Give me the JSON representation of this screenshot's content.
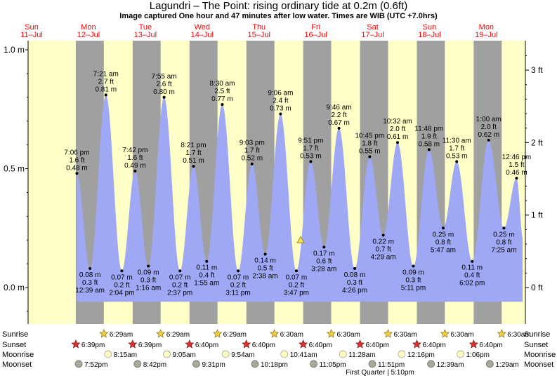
{
  "title": "Lagundri – The Point: rising  ordinary tide at 0.2m (0.6ft)",
  "subtitle": "Image captured One hour and 47 minutes after low water. Times are WIB (UTC +7.0hrs)",
  "colors": {
    "day": "#ffffc8",
    "night": "#a0a0a0",
    "tide": "#9fa8f5",
    "day_label": "#ff0000",
    "sunrise_star": "#f0d040",
    "sunset_star": "#e03030",
    "moonrise": "#fffcc0",
    "moonset": "#a8a898"
  },
  "chart_data": {
    "type": "area",
    "title": "Lagundri – The Point: rising  ordinary tide at 0.2m (0.6ft)",
    "ylim": [
      -0.1,
      1.05
    ],
    "left_ticks": [
      {
        "v": 0.0,
        "label": "0.0 m"
      },
      {
        "v": 0.5,
        "label": "0.5 m"
      },
      {
        "v": 1.0,
        "label": "1.0 m"
      }
    ],
    "right_ticks": [
      {
        "v": 0.0,
        "label": "0 ft"
      },
      {
        "v": 0.3048,
        "label": "1 ft"
      },
      {
        "v": 0.6096,
        "label": "2 ft"
      },
      {
        "v": 0.9144,
        "label": "3 ft"
      }
    ],
    "days": [
      {
        "dow": "Sun",
        "date": "11–Jul",
        "hour": -24
      },
      {
        "dow": "Mon",
        "date": "12–Jul",
        "hour": 0
      },
      {
        "dow": "Tue",
        "date": "13–Jul",
        "hour": 24
      },
      {
        "dow": "Wed",
        "date": "14–Jul",
        "hour": 48
      },
      {
        "dow": "Thu",
        "date": "15–Jul",
        "hour": 72
      },
      {
        "dow": "Fri",
        "date": "16–Jul",
        "hour": 96
      },
      {
        "dow": "Sat",
        "date": "17–Jul",
        "hour": 120
      },
      {
        "dow": "Sun",
        "date": "18–Jul",
        "hour": 144
      },
      {
        "dow": "Mon",
        "date": "19–Jul",
        "hour": 168
      }
    ],
    "tides": [
      {
        "time": "7:06 pm",
        "ft": "1.6 ft",
        "m": "0.48 m",
        "h": -4.9,
        "v": 0.48,
        "type": "high"
      },
      {
        "time": "12:39 am",
        "ft": "0.3 ft",
        "m": "0.08 m",
        "h": 0.65,
        "v": 0.08,
        "type": "low"
      },
      {
        "time": "7:21 am",
        "ft": "2.7 ft",
        "m": "0.81 m",
        "h": 7.35,
        "v": 0.81,
        "type": "high"
      },
      {
        "time": "2:04 pm",
        "ft": "0.2 ft",
        "m": "0.07 m",
        "h": 14.07,
        "v": 0.07,
        "type": "low"
      },
      {
        "time": "7:42 pm",
        "ft": "1.6 ft",
        "m": "0.49 m",
        "h": 19.7,
        "v": 0.49,
        "type": "high"
      },
      {
        "time": "1:16 am",
        "ft": "0.3 ft",
        "m": "0.09 m",
        "h": 25.27,
        "v": 0.09,
        "type": "low"
      },
      {
        "time": "7:55 am",
        "ft": "2.6 ft",
        "m": "0.80 m",
        "h": 31.92,
        "v": 0.8,
        "type": "high"
      },
      {
        "time": "2:37 pm",
        "ft": "0.2 ft",
        "m": "0.07 m",
        "h": 38.62,
        "v": 0.07,
        "type": "low"
      },
      {
        "time": "8:21 pm",
        "ft": "1.7 ft",
        "m": "0.51 m",
        "h": 44.35,
        "v": 0.51,
        "type": "high"
      },
      {
        "time": "1:55 am",
        "ft": "0.4 ft",
        "m": "0.11 m",
        "h": 49.92,
        "v": 0.11,
        "type": "low"
      },
      {
        "time": "8:30 am",
        "ft": "2.5 ft",
        "m": "0.77 m",
        "h": 56.5,
        "v": 0.77,
        "type": "high"
      },
      {
        "time": "3:11 pm",
        "ft": "0.2 ft",
        "m": "0.07 m",
        "h": 63.18,
        "v": 0.07,
        "type": "low"
      },
      {
        "time": "9:03 pm",
        "ft": "1.7 ft",
        "m": "0.52 m",
        "h": 69.05,
        "v": 0.52,
        "type": "high"
      },
      {
        "time": "2:38 am",
        "ft": "0.5 ft",
        "m": "0.14 m",
        "h": 74.63,
        "v": 0.14,
        "type": "low"
      },
      {
        "time": "9:06 am",
        "ft": "2.4 ft",
        "m": "0.73 m",
        "h": 81.1,
        "v": 0.73,
        "type": "high"
      },
      {
        "time": "3:47 pm",
        "ft": "0.2 ft",
        "m": "0.07 m",
        "h": 87.78,
        "v": 0.07,
        "type": "low"
      },
      {
        "time": "9:51 pm",
        "ft": "1.7 ft",
        "m": "0.53 m",
        "h": 93.85,
        "v": 0.53,
        "type": "high"
      },
      {
        "time": "3:28 am",
        "ft": "0.6 ft",
        "m": "0.17 m",
        "h": 99.47,
        "v": 0.17,
        "type": "low"
      },
      {
        "time": "9:46 am",
        "ft": "2.2 ft",
        "m": "0.67 m",
        "h": 105.77,
        "v": 0.67,
        "type": "high"
      },
      {
        "time": "4:26 pm",
        "ft": "0.3 ft",
        "m": "0.08 m",
        "h": 112.43,
        "v": 0.08,
        "type": "low"
      },
      {
        "time": "10:45 pm",
        "ft": "1.8 ft",
        "m": "0.55 m",
        "h": 118.75,
        "v": 0.55,
        "type": "high"
      },
      {
        "time": "4:29 am",
        "ft": "0.7 ft",
        "m": "0.22 m",
        "h": 124.48,
        "v": 0.22,
        "type": "low"
      },
      {
        "time": "10:32 am",
        "ft": "2.0 ft",
        "m": "0.61 m",
        "h": 130.53,
        "v": 0.61,
        "type": "high"
      },
      {
        "time": "5:11 pm",
        "ft": "0.3 ft",
        "m": "0.09 m",
        "h": 137.18,
        "v": 0.09,
        "type": "low"
      },
      {
        "time": "11:48 pm",
        "ft": "1.9 ft",
        "m": "0.58 m",
        "h": 143.8,
        "v": 0.58,
        "type": "high"
      },
      {
        "time": "5:47 am",
        "ft": "0.8 ft",
        "m": "0.25 m",
        "h": 149.78,
        "v": 0.25,
        "type": "low"
      },
      {
        "time": "11:30 am",
        "ft": "1.7 ft",
        "m": "0.53 m",
        "h": 155.5,
        "v": 0.53,
        "type": "high"
      },
      {
        "time": "6:02 pm",
        "ft": "0.4 ft",
        "m": "0.11 m",
        "h": 162.03,
        "v": 0.11,
        "type": "low"
      },
      {
        "time": "1:00 am",
        "ft": "2.0 ft",
        "m": "0.62 m",
        "h": 169.0,
        "v": 0.62,
        "type": "high"
      },
      {
        "time": "7:25 am",
        "ft": "0.8 ft",
        "m": "0.25 m",
        "h": 175.42,
        "v": 0.25,
        "type": "low"
      },
      {
        "time": "12:46 pm",
        "ft": "1.5 ft",
        "m": "0.46 m",
        "h": 180.77,
        "v": 0.46,
        "type": "high"
      }
    ],
    "current": {
      "h": 89.6,
      "v": 0.2
    },
    "sunrise": [
      {
        "time": "6:29am",
        "h": 6.48
      },
      {
        "time": "6:29am",
        "h": 30.48
      },
      {
        "time": "6:29am",
        "h": 54.48
      },
      {
        "time": "6:30am",
        "h": 78.5
      },
      {
        "time": "6:30am",
        "h": 102.5
      },
      {
        "time": "6:30am",
        "h": 126.5
      },
      {
        "time": "6:30am",
        "h": 150.5
      },
      {
        "time": "6:30am",
        "h": 174.5
      }
    ],
    "sunset": [
      {
        "time": "6:39pm",
        "h": -5.35
      },
      {
        "time": "6:39pm",
        "h": 18.65
      },
      {
        "time": "6:40pm",
        "h": 42.67
      },
      {
        "time": "6:40pm",
        "h": 66.67
      },
      {
        "time": "6:40pm",
        "h": 90.67
      },
      {
        "time": "6:40pm",
        "h": 114.67
      },
      {
        "time": "6:40pm",
        "h": 138.67
      },
      {
        "time": "6:40pm",
        "h": 162.67
      }
    ],
    "moonrise": [
      {
        "time": "8:15am",
        "h": 8.25
      },
      {
        "time": "9:05am",
        "h": 33.08
      },
      {
        "time": "9:54am",
        "h": 57.9
      },
      {
        "time": "10:41am",
        "h": 82.68
      },
      {
        "time": "11:28am",
        "h": 107.47
      },
      {
        "time": "12:16pm",
        "h": 132.27
      },
      {
        "time": "1:06pm",
        "h": 157.1
      }
    ],
    "moonset": [
      {
        "time": "7:52pm",
        "h": -4.13
      },
      {
        "time": "8:42pm",
        "h": 20.7
      },
      {
        "time": "9:31pm",
        "h": 45.52
      },
      {
        "time": "10:18pm",
        "h": 70.3
      },
      {
        "time": "11:05pm",
        "h": 95.08
      },
      {
        "time": "11:51pm",
        "h": 119.85
      },
      {
        "time": "12:39am",
        "h": 144.65
      },
      {
        "time": "1:29am",
        "h": 169.48
      }
    ],
    "moon_phase": {
      "label": "First Quarter | 5:10pm"
    }
  },
  "row_labels": {
    "sunrise": "Sunrise",
    "sunset": "Sunset",
    "moonrise": "Moonrise",
    "moonset": "Moonset"
  }
}
